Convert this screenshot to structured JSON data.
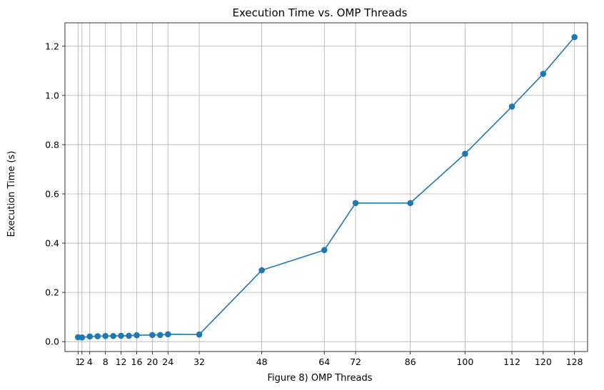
{
  "chart_data": {
    "type": "line",
    "title": "Execution Time vs. OMP Threads",
    "xlabel": "Figure 8) OMP Threads",
    "ylabel": "Execution Time (s)",
    "x_ticks": [
      1,
      2,
      4,
      8,
      12,
      16,
      20,
      24,
      32,
      48,
      64,
      72,
      86,
      100,
      112,
      120,
      128
    ],
    "y_ticks": [
      0.0,
      0.2,
      0.4,
      0.6,
      0.8,
      1.0,
      1.2
    ],
    "y_tick_labels": [
      "0.0",
      "0.2",
      "0.4",
      "0.6",
      "0.8",
      "1.0",
      "1.2"
    ],
    "xlim": [
      -2.35,
      131.35
    ],
    "ylim": [
      -0.04,
      1.295
    ],
    "grid": true,
    "color": "#1f77b4",
    "series": [
      {
        "x": [
          1,
          2,
          4,
          6,
          8,
          10,
          12,
          14,
          16,
          20,
          22,
          24,
          32,
          48,
          64,
          72,
          86,
          100,
          112,
          120,
          128
        ],
        "y": [
          0.018,
          0.017,
          0.021,
          0.022,
          0.023,
          0.023,
          0.024,
          0.024,
          0.026,
          0.027,
          0.027,
          0.03,
          0.029,
          0.29,
          0.372,
          0.563,
          0.563,
          0.763,
          0.955,
          1.088,
          1.237
        ]
      }
    ]
  }
}
